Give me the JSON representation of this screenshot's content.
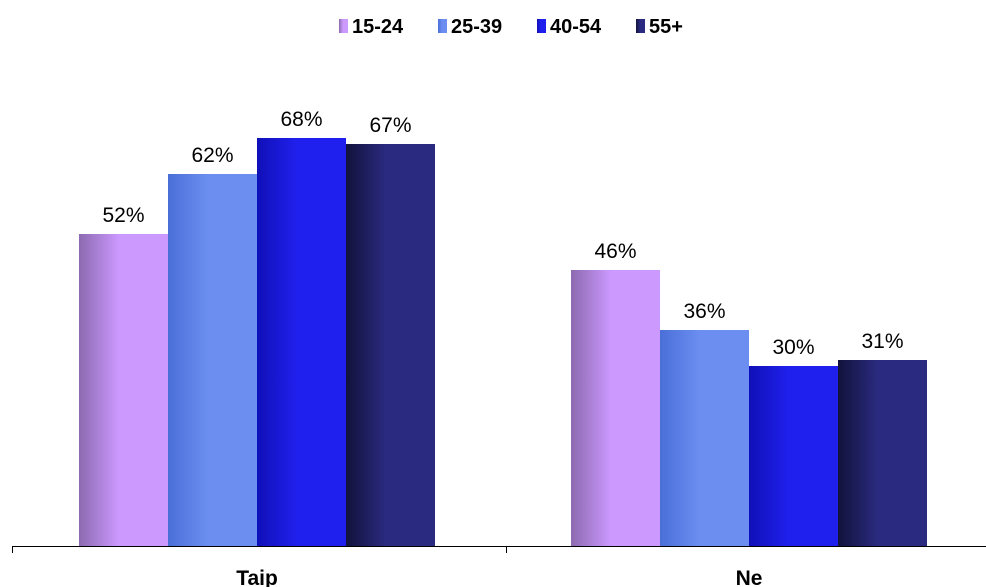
{
  "chart_data": {
    "type": "bar",
    "categories": [
      "Taip",
      "Ne"
    ],
    "series": [
      {
        "name": "15-24",
        "values": [
          52,
          46
        ]
      },
      {
        "name": "25-39",
        "values": [
          62,
          36
        ]
      },
      {
        "name": "40-54",
        "values": [
          68,
          30
        ]
      },
      {
        "name": "55+",
        "values": [
          67,
          31
        ]
      }
    ],
    "value_suffix": "%",
    "title": "",
    "xlabel": "",
    "ylabel": "",
    "ylim": [
      0,
      100
    ],
    "grid": false,
    "legend": "top-center",
    "colors": {
      "15-24": {
        "light": "#cc99ff",
        "dark": "#8c6ab0"
      },
      "25-39": {
        "light": "#6b8ef0",
        "dark": "#4a6fd8"
      },
      "40-54": {
        "light": "#2020ee",
        "dark": "#1010b8"
      },
      "55+": {
        "light": "#2a2a80",
        "dark": "#12123c"
      }
    }
  }
}
